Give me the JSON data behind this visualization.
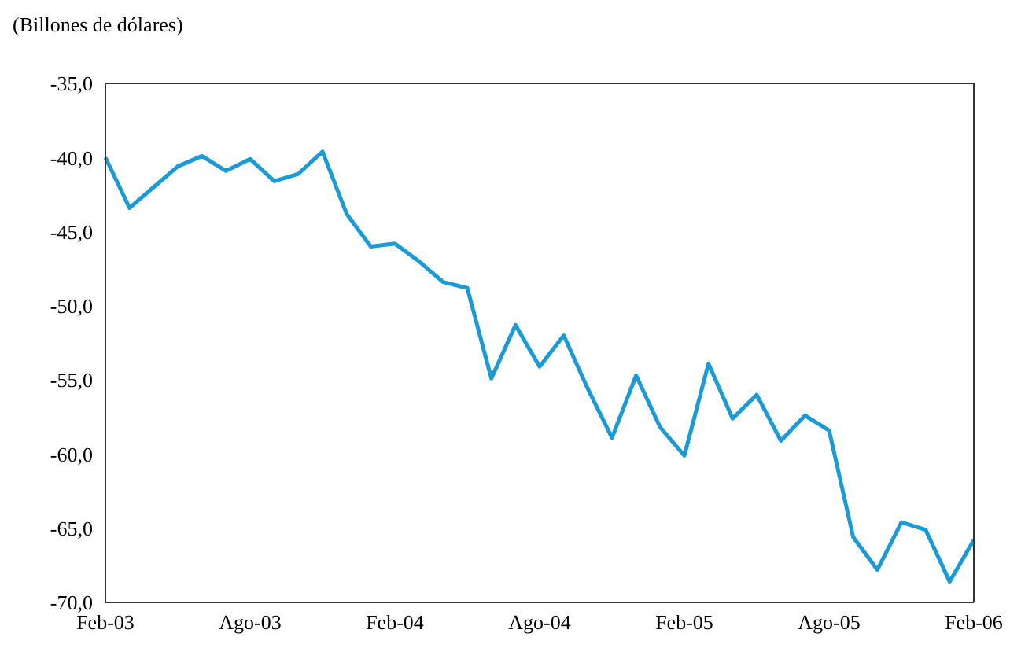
{
  "chart_data": {
    "type": "line",
    "ylabel": "(Billones de dólares)",
    "categories": [
      "Feb-03",
      null,
      null,
      null,
      null,
      null,
      "Ago-03",
      null,
      null,
      null,
      null,
      null,
      "Feb-04",
      null,
      null,
      null,
      null,
      null,
      "Ago-04",
      null,
      null,
      null,
      null,
      null,
      "Feb-05",
      null,
      null,
      null,
      null,
      null,
      "Ago-05",
      null,
      null,
      null,
      null,
      null,
      "Feb-06"
    ],
    "series": [
      {
        "color": "#1a9ad6",
        "values": [
          -40.0,
          -43.4,
          -42.0,
          -40.6,
          -39.9,
          -40.9,
          -40.1,
          -41.6,
          -41.1,
          -39.6,
          -43.8,
          -46.0,
          -45.8,
          -47.0,
          -48.4,
          -48.8,
          -54.9,
          -51.3,
          -54.1,
          -52.0,
          -55.6,
          -58.9,
          -54.7,
          -58.2,
          -60.1,
          -53.9,
          -57.6,
          -56.0,
          -59.1,
          -57.4,
          -58.4,
          -65.6,
          -67.8,
          -64.6,
          -65.1,
          -68.6,
          -65.8
        ]
      }
    ],
    "ylim": [
      -70,
      -35
    ],
    "yticks": [
      {
        "value": -35,
        "label": "-35,0"
      },
      {
        "value": -40,
        "label": "-40,0"
      },
      {
        "value": -45,
        "label": "-45,0"
      },
      {
        "value": -50,
        "label": "-50,0"
      },
      {
        "value": -55,
        "label": "-55,0"
      },
      {
        "value": -60,
        "label": "-60,0"
      },
      {
        "value": -65,
        "label": "-65,0"
      },
      {
        "value": -70,
        "label": "-70,0"
      }
    ],
    "grid": false,
    "legend": false,
    "marker": "none",
    "line_style": "solid"
  }
}
